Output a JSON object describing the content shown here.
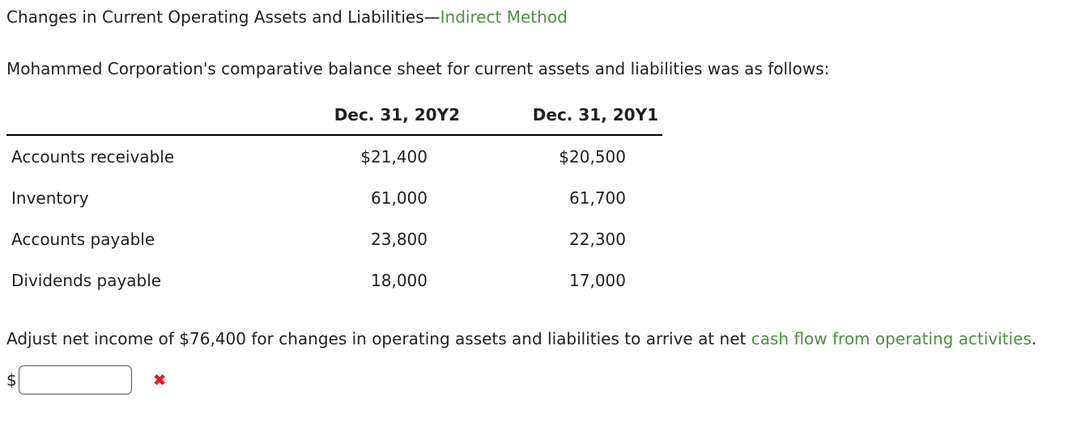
{
  "title": {
    "text_black": "Changes in Current Operating Assets and Liabilities—",
    "text_green": "Indirect Method"
  },
  "intro": "Mohammed Corporation's comparative balance sheet for current assets and liabilities was as follows:",
  "table": {
    "col_headers": [
      "Dec. 31, 20Y2",
      "Dec. 31, 20Y1"
    ],
    "rows": [
      {
        "label": "Accounts receivable",
        "y2": "$21,400",
        "y1": "$20,500"
      },
      {
        "label": "Inventory",
        "y2": "61,000",
        "y1": "61,700"
      },
      {
        "label": "Accounts payable",
        "y2": "23,800",
        "y1": "22,300"
      },
      {
        "label": "Dividends payable",
        "y2": "18,000",
        "y1": "17,000"
      }
    ]
  },
  "instruction": {
    "before_link": "Adjust net income of $76,400 for changes in operating assets and liabilities to arrive at net ",
    "link_text": "cash flow from operating activities",
    "after_link": "."
  },
  "answer": {
    "currency_prefix": "$",
    "input_value": "",
    "input_placeholder": "",
    "status_icon": "✖"
  },
  "colors": {
    "link_green": "#4c9141",
    "error_red": "#e01b1b",
    "text": "#1f1f1f"
  }
}
